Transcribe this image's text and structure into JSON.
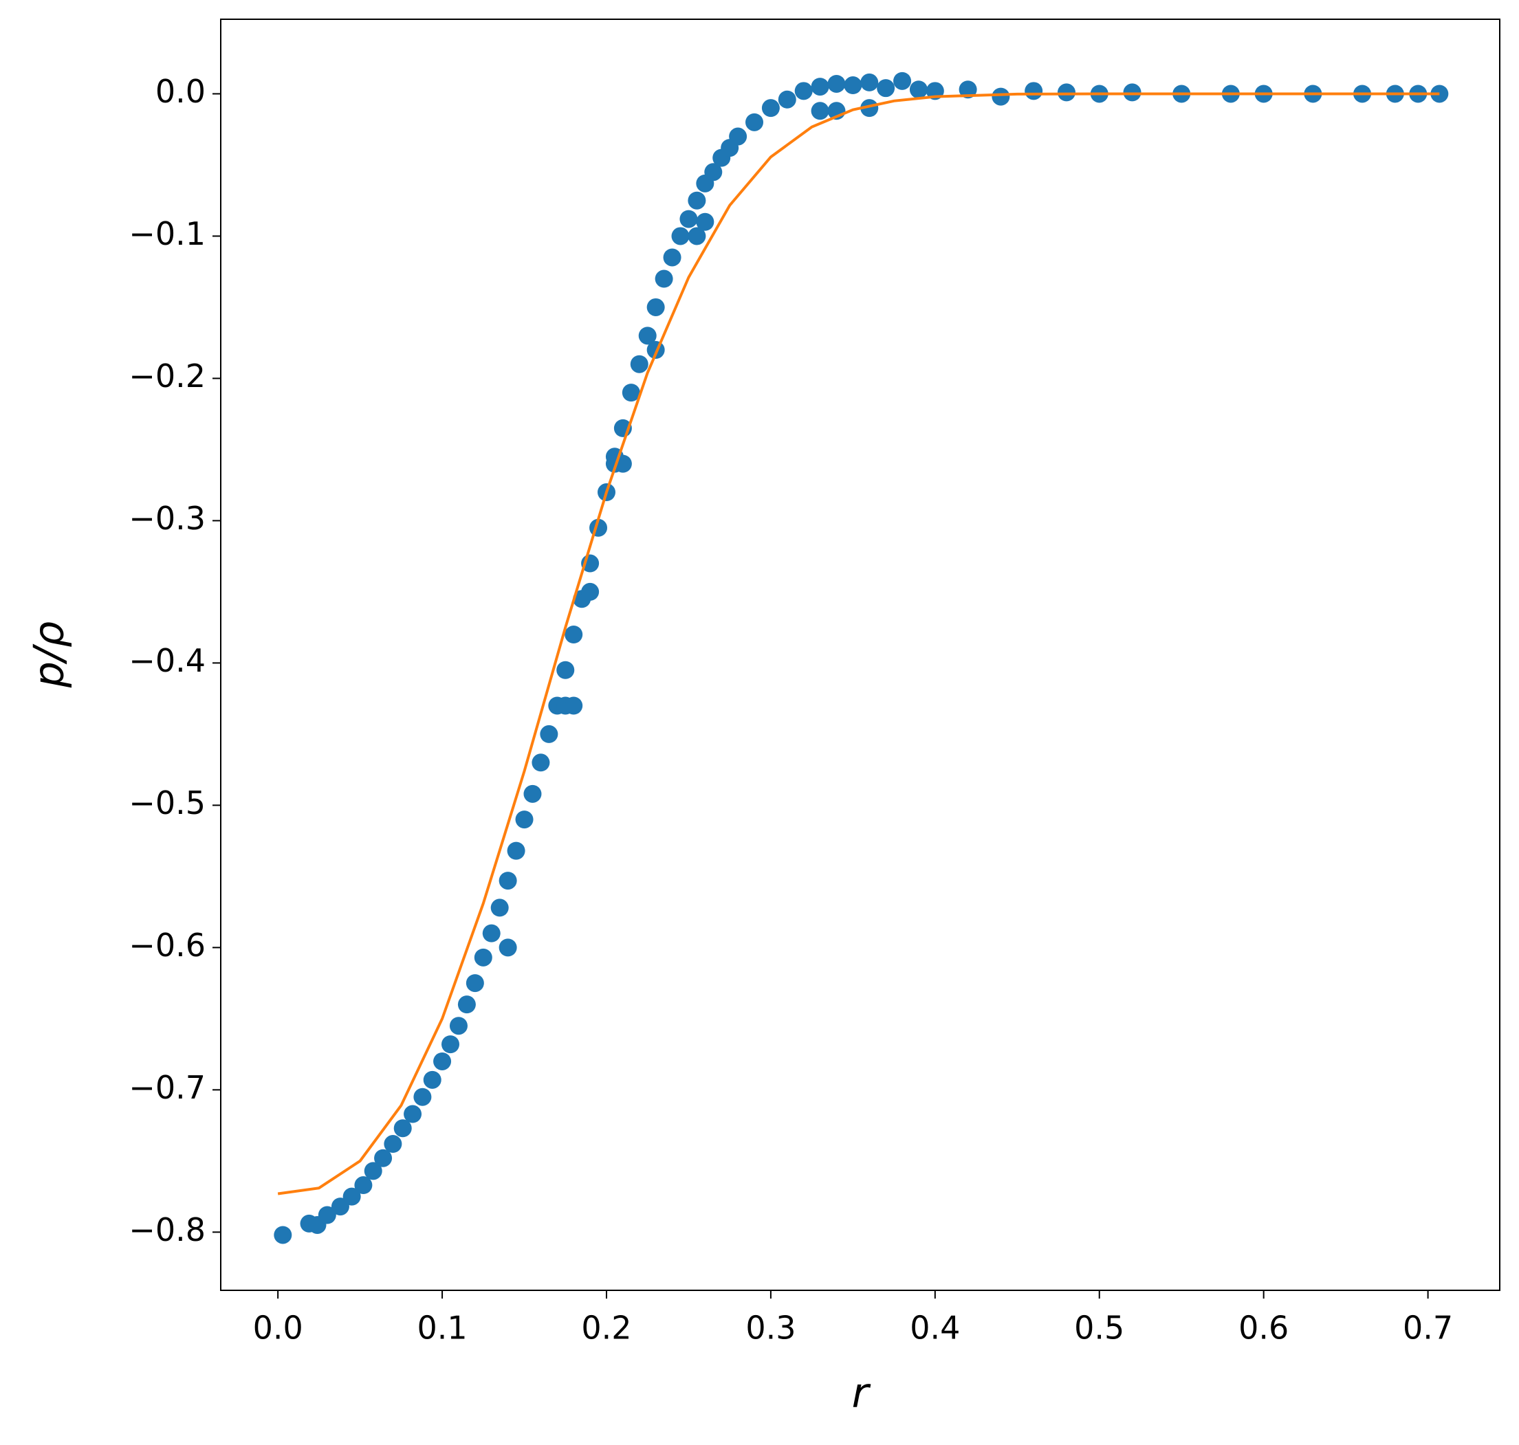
{
  "chart_data": {
    "type": "scatter",
    "x_label": "r",
    "y_label": "p/ρ",
    "xlim": [
      -0.0348,
      0.7437
    ],
    "ylim": [
      -0.8409,
      0.0524
    ],
    "xticks": [
      {
        "value": 0,
        "label": "0.0"
      },
      0.1,
      0.2,
      0.3,
      0.4,
      0.5,
      0.6,
      0.7
    ],
    "yticks": [
      {
        "value": 0,
        "label": "0.0"
      },
      {
        "value": -0.1,
        "label": "−0.1"
      },
      {
        "value": -0.2,
        "label": "−0.2"
      },
      {
        "value": -0.3,
        "label": "−0.3"
      },
      {
        "value": -0.4,
        "label": "−0.4"
      },
      {
        "value": -0.5,
        "label": "−0.5"
      },
      {
        "value": -0.6,
        "label": "−0.6"
      },
      {
        "value": -0.7,
        "label": "−0.7"
      },
      {
        "value": -0.8,
        "label": "−0.8"
      }
    ],
    "series": [
      {
        "type": "scatter",
        "color": "#1f77b4",
        "x": [
          0.003,
          0.019,
          0.024,
          0.03,
          0.038,
          0.045,
          0.052,
          0.058,
          0.064,
          0.07,
          0.076,
          0.082,
          0.088,
          0.094,
          0.1,
          0.105,
          0.11,
          0.115,
          0.12,
          0.125,
          0.13,
          0.135,
          0.14,
          0.145,
          0.15,
          0.155,
          0.16,
          0.165,
          0.17,
          0.175,
          0.18,
          0.185,
          0.19,
          0.195,
          0.2,
          0.205,
          0.21,
          0.215,
          0.22,
          0.225,
          0.23,
          0.235,
          0.24,
          0.245,
          0.25,
          0.255,
          0.26,
          0.265,
          0.27,
          0.275,
          0.28,
          0.29,
          0.3,
          0.31,
          0.32,
          0.33,
          0.34,
          0.35,
          0.36,
          0.37,
          0.38,
          0.39,
          0.4,
          0.42,
          0.44,
          0.46,
          0.48,
          0.5,
          0.52,
          0.55,
          0.58,
          0.6,
          0.63,
          0.66,
          0.68,
          0.694,
          0.707,
          0.175,
          0.205,
          0.34,
          0.36,
          0.33,
          0.255,
          0.23,
          0.26,
          0.21,
          0.19,
          0.18,
          0.14
        ],
        "values": [
          -0.802,
          -0.794,
          -0.795,
          -0.788,
          -0.782,
          -0.775,
          -0.767,
          -0.757,
          -0.748,
          -0.738,
          -0.727,
          -0.717,
          -0.705,
          -0.693,
          -0.68,
          -0.668,
          -0.655,
          -0.64,
          -0.625,
          -0.607,
          -0.59,
          -0.572,
          -0.553,
          -0.532,
          -0.51,
          -0.492,
          -0.47,
          -0.45,
          -0.43,
          -0.405,
          -0.38,
          -0.355,
          -0.33,
          -0.305,
          -0.28,
          -0.255,
          -0.235,
          -0.21,
          -0.19,
          -0.17,
          -0.15,
          -0.13,
          -0.115,
          -0.1,
          -0.088,
          -0.075,
          -0.063,
          -0.055,
          -0.045,
          -0.038,
          -0.03,
          -0.02,
          -0.01,
          -0.004,
          0.002,
          0.005,
          0.007,
          0.006,
          0.008,
          0.004,
          0.009,
          0.003,
          0.002,
          0.003,
          -0.002,
          0.002,
          0.001,
          0,
          0.001,
          0,
          0,
          0,
          0,
          0,
          0,
          0,
          0,
          -0.43,
          -0.26,
          -0.012,
          -0.01,
          -0.012,
          -0.1,
          -0.18,
          -0.09,
          -0.26,
          -0.35,
          -0.43,
          -0.6
        ]
      },
      {
        "type": "line",
        "color": "#ff7f0e",
        "x": [
          0,
          0.025,
          0.05,
          0.075,
          0.1,
          0.125,
          0.15,
          0.175,
          0.2,
          0.225,
          0.25,
          0.275,
          0.3,
          0.325,
          0.35,
          0.375,
          0.4,
          0.45,
          0.5,
          0.6,
          0.707
        ],
        "values": [
          -0.773,
          -0.769,
          -0.75,
          -0.711,
          -0.65,
          -0.569,
          -0.476,
          -0.375,
          -0.28,
          -0.196,
          -0.129,
          -0.0784,
          -0.0444,
          -0.0233,
          -0.0112,
          -0.005,
          -0.002,
          -0.0002,
          0,
          0,
          0
        ]
      }
    ]
  }
}
